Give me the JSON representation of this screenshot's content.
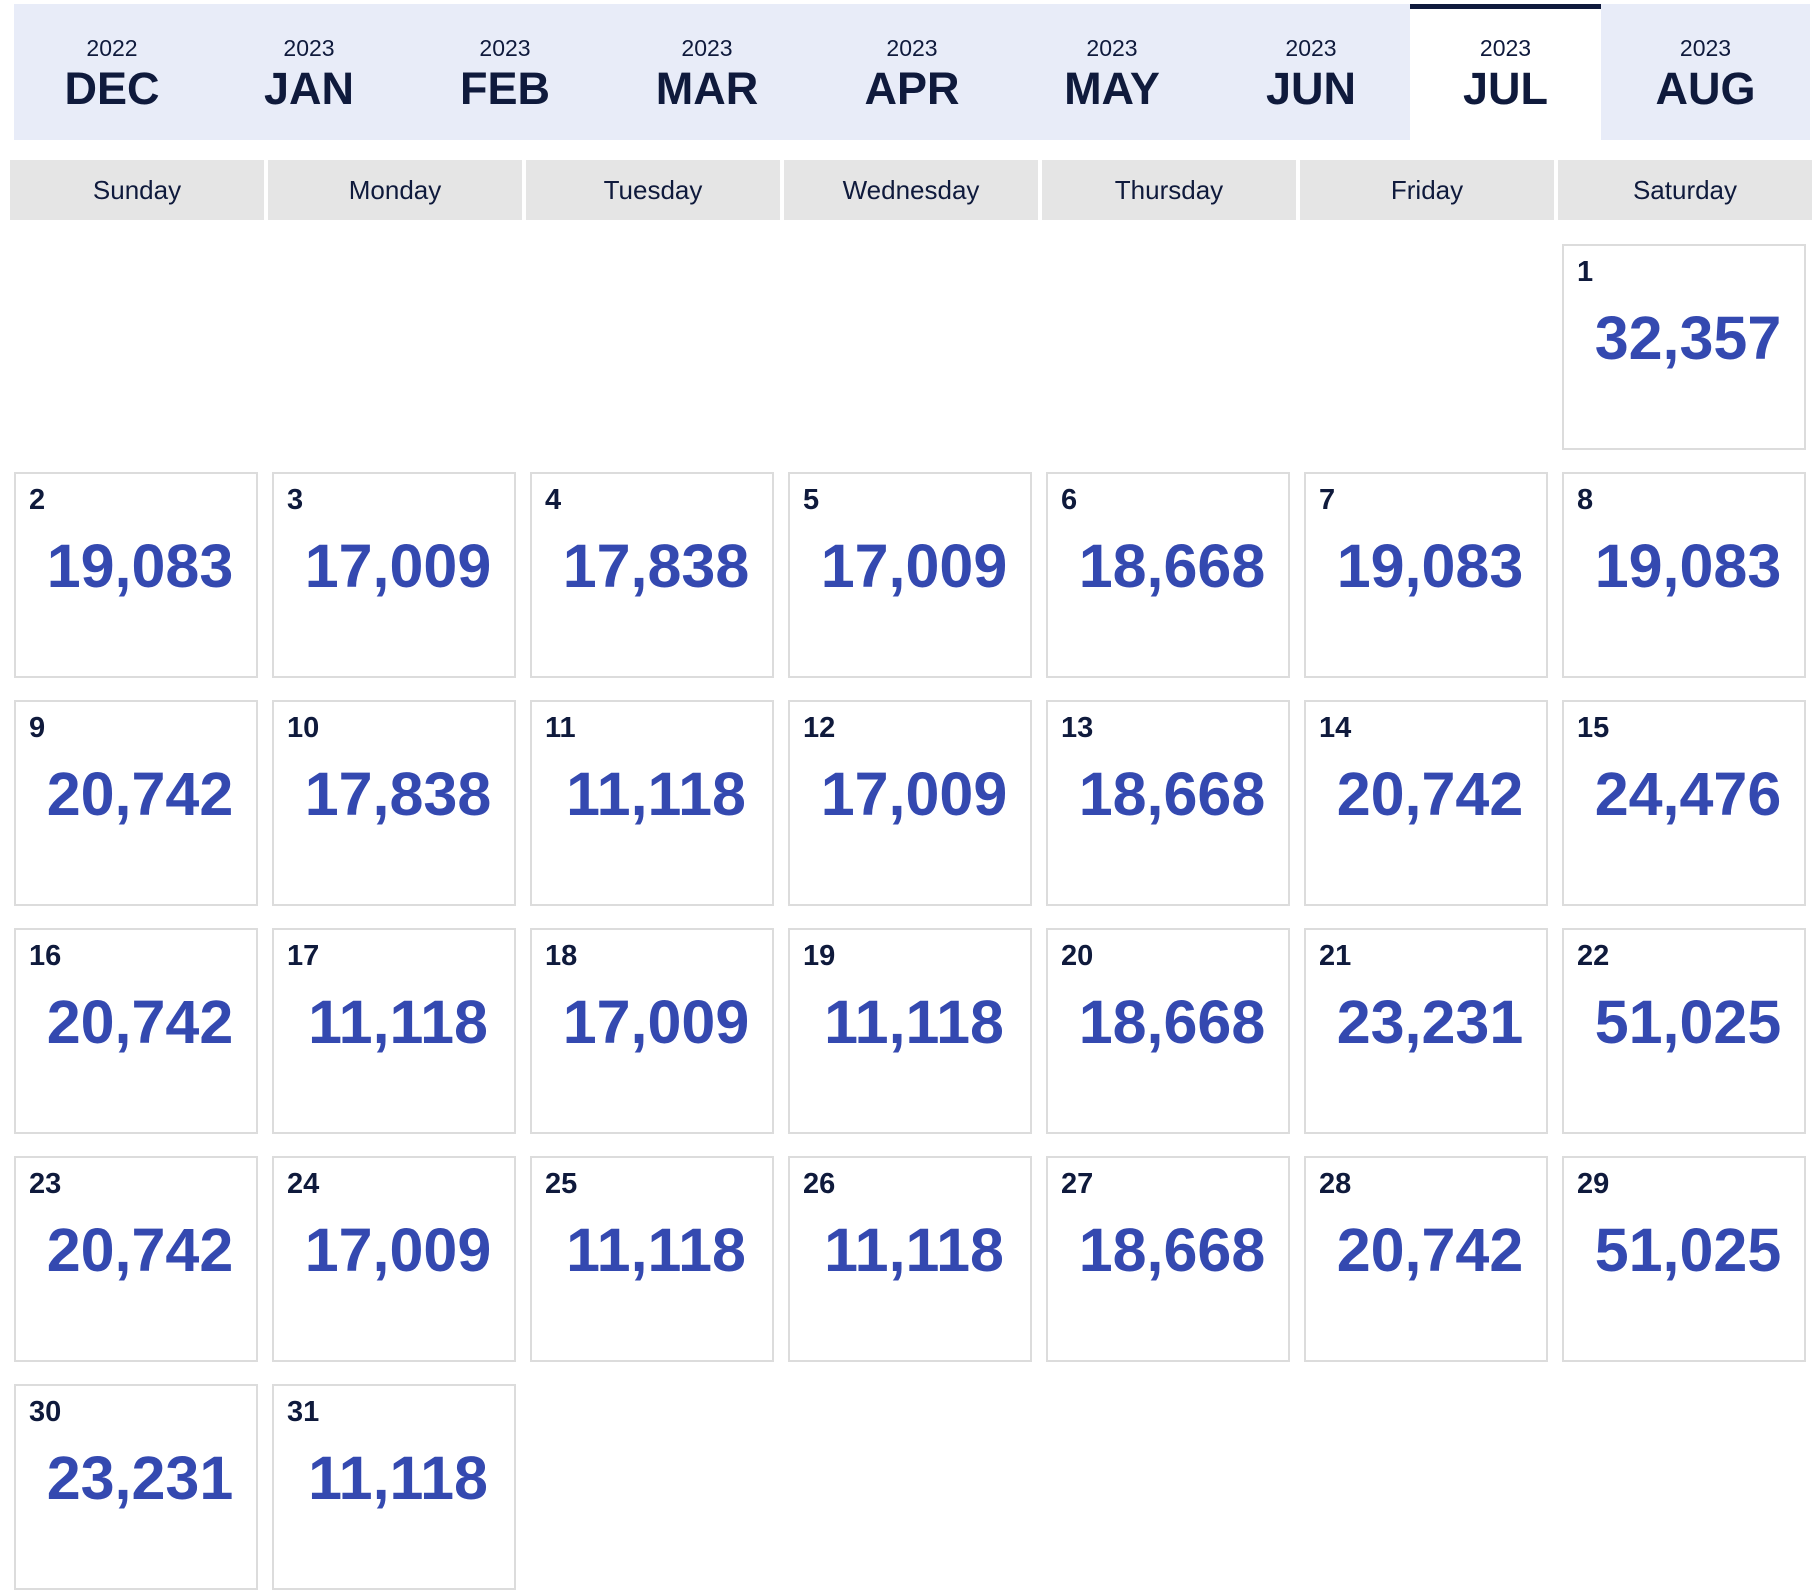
{
  "months": [
    {
      "year": "2022",
      "month": "DEC",
      "active": false
    },
    {
      "year": "2023",
      "month": "JAN",
      "active": false
    },
    {
      "year": "2023",
      "month": "FEB",
      "active": false
    },
    {
      "year": "2023",
      "month": "MAR",
      "active": false
    },
    {
      "year": "2023",
      "month": "APR",
      "active": false
    },
    {
      "year": "2023",
      "month": "MAY",
      "active": false
    },
    {
      "year": "2023",
      "month": "JUN",
      "active": false
    },
    {
      "year": "2023",
      "month": "JUL",
      "active": true
    },
    {
      "year": "2023",
      "month": "AUG",
      "active": false
    }
  ],
  "weekdays": [
    "Sunday",
    "Monday",
    "Tuesday",
    "Wednesday",
    "Thursday",
    "Friday",
    "Saturday"
  ],
  "first_weekday_index": 6,
  "days": [
    {
      "day": "1",
      "value": "32,357"
    },
    {
      "day": "2",
      "value": "19,083"
    },
    {
      "day": "3",
      "value": "17,009"
    },
    {
      "day": "4",
      "value": "17,838"
    },
    {
      "day": "5",
      "value": "17,009"
    },
    {
      "day": "6",
      "value": "18,668"
    },
    {
      "day": "7",
      "value": "19,083"
    },
    {
      "day": "8",
      "value": "19,083"
    },
    {
      "day": "9",
      "value": "20,742"
    },
    {
      "day": "10",
      "value": "17,838"
    },
    {
      "day": "11",
      "value": "11,118"
    },
    {
      "day": "12",
      "value": "17,009"
    },
    {
      "day": "13",
      "value": "18,668"
    },
    {
      "day": "14",
      "value": "20,742"
    },
    {
      "day": "15",
      "value": "24,476"
    },
    {
      "day": "16",
      "value": "20,742"
    },
    {
      "day": "17",
      "value": "11,118"
    },
    {
      "day": "18",
      "value": "17,009"
    },
    {
      "day": "19",
      "value": "11,118"
    },
    {
      "day": "20",
      "value": "18,668"
    },
    {
      "day": "21",
      "value": "23,231"
    },
    {
      "day": "22",
      "value": "51,025"
    },
    {
      "day": "23",
      "value": "20,742"
    },
    {
      "day": "24",
      "value": "17,009"
    },
    {
      "day": "25",
      "value": "11,118"
    },
    {
      "day": "26",
      "value": "11,118"
    },
    {
      "day": "27",
      "value": "18,668"
    },
    {
      "day": "28",
      "value": "20,742"
    },
    {
      "day": "29",
      "value": "51,025"
    },
    {
      "day": "30",
      "value": "23,231"
    },
    {
      "day": "31",
      "value": "11,118"
    }
  ],
  "colors": {
    "tab_bar": "#e8ecf8",
    "active_indicator": "#0f1a3c",
    "header_bg": "#e5e5e5",
    "value_text": "#3449b0",
    "text_dark": "#0f1a3c"
  }
}
